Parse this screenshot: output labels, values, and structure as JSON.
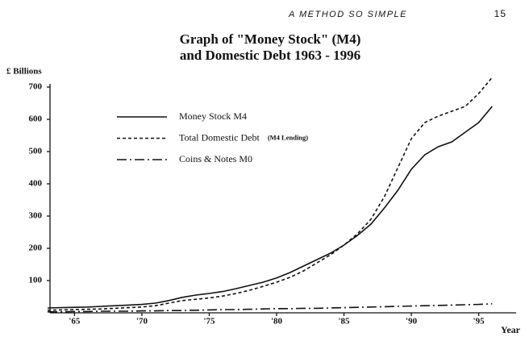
{
  "page_header": {
    "running_title": "A METHOD SO SIMPLE",
    "page_number": "15"
  },
  "chart_data": {
    "type": "line",
    "title": [
      "Graph of \"Money Stock\" (M4)",
      "and Domestic Debt  1963 - 1996"
    ],
    "y_label": "£ Billions",
    "x_label": "Year",
    "x": [
      1963,
      1964,
      1965,
      1966,
      1967,
      1968,
      1969,
      1970,
      1971,
      1972,
      1973,
      1974,
      1975,
      1976,
      1977,
      1978,
      1979,
      1980,
      1981,
      1982,
      1983,
      1984,
      1985,
      1986,
      1987,
      1988,
      1989,
      1990,
      1991,
      1992,
      1993,
      1994,
      1995,
      1996
    ],
    "series": [
      {
        "name": "Money Stock M4",
        "color": "#111111",
        "dash": "solid",
        "values": [
          15,
          16,
          17,
          18,
          20,
          22,
          24,
          26,
          30,
          38,
          48,
          55,
          60,
          66,
          75,
          85,
          95,
          108,
          125,
          145,
          165,
          185,
          210,
          240,
          275,
          325,
          380,
          445,
          490,
          515,
          530,
          560,
          590,
          640
        ]
      },
      {
        "name": "Total Domestic Debt",
        "note": "(M4 Lending)",
        "color": "#111111",
        "dash": "dotted",
        "values": [
          8,
          9,
          10,
          11,
          12,
          14,
          16,
          18,
          22,
          30,
          38,
          42,
          46,
          52,
          60,
          70,
          82,
          95,
          110,
          130,
          155,
          180,
          210,
          245,
          290,
          360,
          450,
          540,
          590,
          610,
          625,
          640,
          680,
          730
        ]
      },
      {
        "name": "Coins & Notes M0",
        "color": "#111111",
        "dash": "dashdot",
        "values": [
          3,
          3,
          4,
          4,
          5,
          5,
          5,
          6,
          6,
          7,
          7,
          8,
          9,
          10,
          10,
          11,
          12,
          13,
          13,
          14,
          14,
          15,
          16,
          17,
          18,
          19,
          20,
          21,
          22,
          23,
          24,
          25,
          26,
          28
        ]
      }
    ],
    "xlim": [
      1963,
      1997
    ],
    "ylim": [
      0,
      700
    ],
    "xticks": [
      {
        "value": 1965,
        "label": "'65"
      },
      {
        "value": 1970,
        "label": "'70"
      },
      {
        "value": 1975,
        "label": "'75"
      },
      {
        "value": 1980,
        "label": "'80"
      },
      {
        "value": 1985,
        "label": "'85"
      },
      {
        "value": 1990,
        "label": "'90"
      },
      {
        "value": 1995,
        "label": "'95"
      }
    ],
    "yticks": [
      100,
      200,
      300,
      400,
      500,
      600,
      700
    ]
  }
}
